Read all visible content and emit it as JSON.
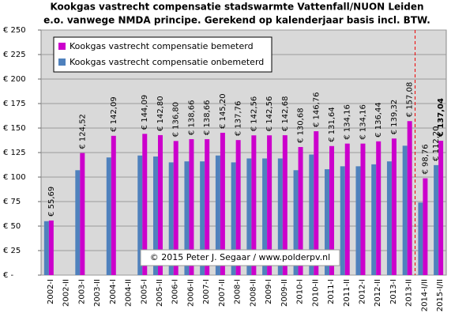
{
  "chart_data": {
    "type": "bar",
    "title": [
      "Kookgas vastrecht compensatie stadswarmte Vattenfall/NUON Leiden",
      "e.o.  vanwege NMDA principe. Gerekend op kalenderjaar basis incl. BTW."
    ],
    "annotation": "© 2015 Peter J. Segaar / www.polderpv.nl",
    "categories": [
      "2002-I",
      "2002-II",
      "2003-I",
      "2003-II",
      "2004-I",
      "2004-II",
      "2005-I",
      "2005-II",
      "2006-I",
      "2006-II",
      "2007-I",
      "2007-II",
      "2008-I",
      "2008-II",
      "2009-I",
      "2009-II",
      "2010-I",
      "2010-II",
      "2011-I",
      "2011-II",
      "2012-I",
      "2012-II",
      "2013-I",
      "2013-II",
      "2014-I/II",
      "2015-I/II"
    ],
    "series": [
      {
        "name": "Kookgas vastrecht compensatie onbemeterd",
        "color": "#4f81bd",
        "values": [
          55,
          null,
          107,
          null,
          120,
          null,
          122,
          121,
          115,
          116,
          116,
          122,
          115,
          119,
          119,
          119,
          107,
          123,
          108,
          111,
          111,
          113,
          116,
          132,
          74,
          112.2
        ],
        "value_labels": [
          null,
          null,
          null,
          null,
          null,
          null,
          null,
          null,
          null,
          null,
          null,
          null,
          null,
          null,
          null,
          null,
          null,
          null,
          null,
          null,
          null,
          null,
          null,
          null,
          null,
          "€ 112,20"
        ]
      },
      {
        "name": "Kookgas vastrecht compensatie bemeterd",
        "color": "#cc00cc",
        "values": [
          55.69,
          null,
          124.52,
          null,
          142.09,
          null,
          144.09,
          142.8,
          136.8,
          138.66,
          138.66,
          145.2,
          137.76,
          142.56,
          142.56,
          142.68,
          130.68,
          146.76,
          131.64,
          134.16,
          134.16,
          136.44,
          139.32,
          157.08,
          98.76,
          137.04
        ],
        "value_labels": [
          "€ 55,69",
          null,
          "€ 124,52",
          null,
          "€ 142,09",
          null,
          "€ 144,09",
          "€ 142,80",
          "€ 136,80",
          "€ 138,66",
          "€ 138,66",
          "€ 145,20",
          "€ 137,76",
          "€ 142,56",
          "€ 142,56",
          "€ 142,68",
          "€ 130,68",
          "€ 146,76",
          "€ 131,64",
          "€ 134,16",
          "€ 134,16",
          "€ 136,44",
          "€ 139,32",
          "€ 157,08",
          "€ 98,76",
          "€ 137,04"
        ]
      }
    ],
    "ylim": [
      0,
      250
    ],
    "yticks": [
      {
        "value": 0,
        "label": "€ -"
      },
      {
        "value": 25,
        "label": "€ 25"
      },
      {
        "value": 50,
        "label": "€ 50"
      },
      {
        "value": 75,
        "label": "€ 75"
      },
      {
        "value": 100,
        "label": "€ 100"
      },
      {
        "value": 125,
        "label": "€ 125"
      },
      {
        "value": 150,
        "label": "€ 150"
      },
      {
        "value": 175,
        "label": "€ 175"
      },
      {
        "value": 200,
        "label": "€ 200"
      },
      {
        "value": 225,
        "label": "€ 225"
      },
      {
        "value": 250,
        "label": "€ 250"
      }
    ],
    "grid": true
  }
}
